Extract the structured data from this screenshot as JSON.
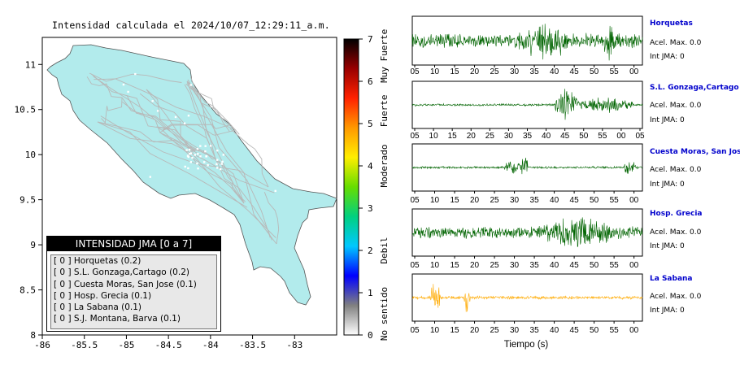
{
  "map": {
    "title": "Intensidad calculada el 2024/10/07_12:29:11_a.m.",
    "x_ticks": [
      "-86",
      "-85.5",
      "-85",
      "-84.5",
      "-84",
      "-83.5",
      "-83"
    ],
    "y_ticks": [
      "11",
      "10.5",
      "10",
      "9.5",
      "9",
      "8.5",
      "8"
    ],
    "land_color": "#b2ebec",
    "road_color": "#b8b8b8"
  },
  "colorbar": {
    "ticks": [
      "0",
      "1",
      "2",
      "3",
      "4",
      "5",
      "6",
      "7"
    ],
    "labels": [
      "No sentido",
      "Debil",
      "Moderado",
      "Fuerte",
      "Muy Fuerte"
    ],
    "colors": [
      "#ffffff",
      "#808080",
      "#0000ff",
      "#00c8ff",
      "#00d080",
      "#66dd00",
      "#ffee00",
      "#ff9900",
      "#ff2200",
      "#990000",
      "#000000"
    ]
  },
  "legend": {
    "header": "INTENSIDAD JMA [0 a 7]",
    "rows": [
      "[ 0 ]  Horquetas (0.2)",
      "[ 0 ]  S.L. Gonzaga,Cartago (0.2)",
      "[ 0 ]  Cuesta Moras, San Jose (0.1)",
      "[ 0 ]  Hosp. Grecia (0.1)",
      "[ 0 ]  La Sabana (0.1)",
      "[ 0 ]  S.J. Montana, Barva (0.1)"
    ]
  },
  "stations": [
    {
      "name": "Horquetas",
      "accel": "Acel. Max. 0.0",
      "jma": "Int JMA: 0",
      "ticks": [
        "05",
        "10",
        "15",
        "20",
        "25",
        "30",
        "35",
        "40",
        "45",
        "50",
        "55",
        "00"
      ],
      "color": "#006400"
    },
    {
      "name": "S.L. Gonzaga,Cartago",
      "accel": "Acel. Max. 0.0",
      "jma": "Int JMA: 0",
      "ticks": [
        "05",
        "10",
        "15",
        "20",
        "25",
        "30",
        "35",
        "40",
        "45",
        "50",
        "55",
        "00",
        "05"
      ],
      "color": "#006400"
    },
    {
      "name": "Cuesta Moras, San Jose",
      "accel": "Acel. Max. 0.0",
      "jma": "Int JMA: 0",
      "ticks": [
        "05",
        "10",
        "15",
        "20",
        "25",
        "30",
        "35",
        "40",
        "45",
        "50",
        "55",
        "00"
      ],
      "color": "#006400"
    },
    {
      "name": "Hosp. Grecia",
      "accel": "Acel. Max. 0.0",
      "jma": "Int JMA: 0",
      "ticks": [
        "05",
        "10",
        "15",
        "20",
        "25",
        "30",
        "35",
        "40",
        "45",
        "50",
        "55",
        "00"
      ],
      "color": "#006400"
    },
    {
      "name": "La Sabana",
      "accel": "Acel. Max. 0.0",
      "jma": "Int JMA: 0",
      "ticks": [
        "05",
        "10",
        "15",
        "20",
        "25",
        "30",
        "35",
        "40",
        "45",
        "50",
        "55",
        "00"
      ],
      "color": "#ffaa00"
    }
  ],
  "x_label": "Tiempo (s)",
  "chart_data": [
    {
      "type": "heatmap",
      "title": "Intensidad calculada el 2024/10/07_12:29:11_a.m.",
      "xlim": [
        -86,
        -82.5
      ],
      "ylim": [
        8,
        11.3
      ],
      "colorbar_range": [
        0,
        7
      ],
      "colorbar_labels": [
        "No sentido",
        "Debil",
        "Moderado",
        "Fuerte",
        "Muy Fuerte"
      ],
      "legend_title": "INTENSIDAD JMA [0 a 7]",
      "stations": [
        {
          "name": "Horquetas",
          "jma_class": 0,
          "intensity": 0.2
        },
        {
          "name": "S.L. Gonzaga,Cartago",
          "jma_class": 0,
          "intensity": 0.2
        },
        {
          "name": "Cuesta Moras, San Jose",
          "jma_class": 0,
          "intensity": 0.1
        },
        {
          "name": "Hosp. Grecia",
          "jma_class": 0,
          "intensity": 0.1
        },
        {
          "name": "La Sabana",
          "jma_class": 0,
          "intensity": 0.1
        },
        {
          "name": "S.J. Montana, Barva",
          "jma_class": 0,
          "intensity": 0.1
        }
      ]
    },
    {
      "type": "line",
      "xlabel": "Tiempo (s)",
      "series": [
        {
          "name": "Horquetas",
          "accel_max": 0.0,
          "jma": 0
        },
        {
          "name": "S.L. Gonzaga,Cartago",
          "accel_max": 0.0,
          "jma": 0
        },
        {
          "name": "Cuesta Moras, San Jose",
          "accel_max": 0.0,
          "jma": 0
        },
        {
          "name": "Hosp. Grecia",
          "accel_max": 0.0,
          "jma": 0
        },
        {
          "name": "La Sabana",
          "accel_max": 0.0,
          "jma": 0
        }
      ]
    }
  ]
}
